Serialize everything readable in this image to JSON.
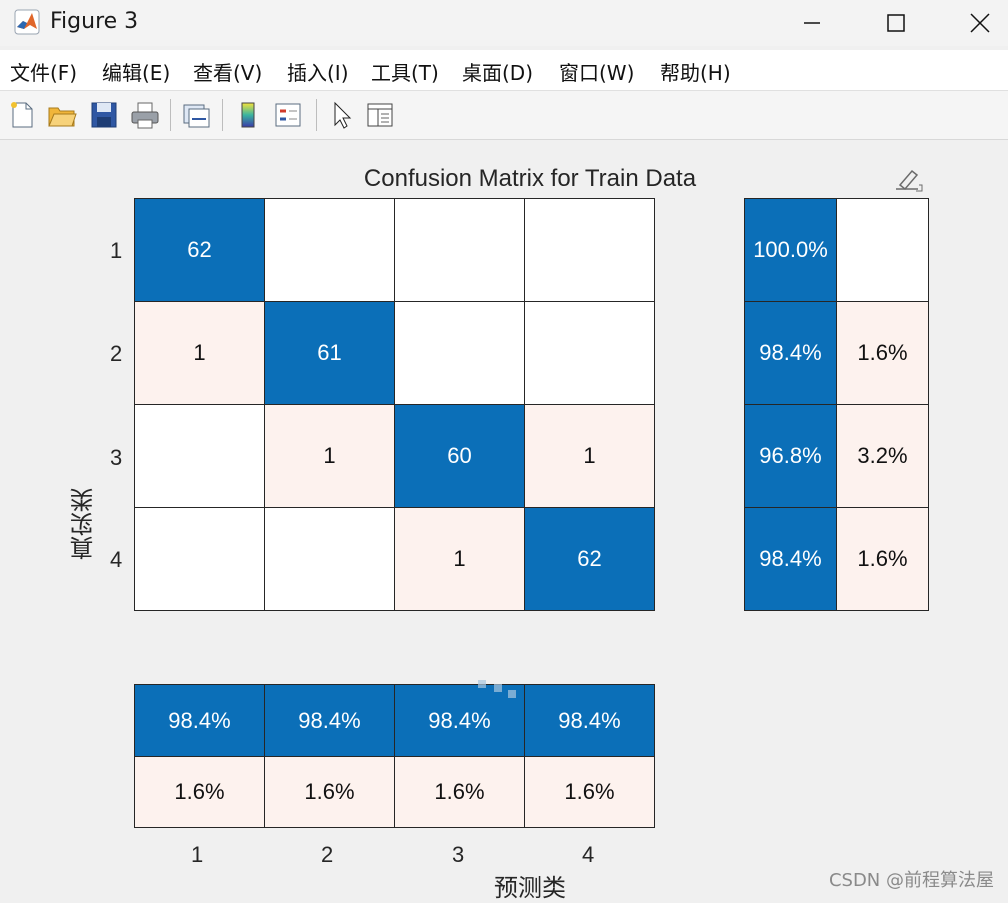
{
  "window": {
    "title": "Figure 3"
  },
  "menu": [
    {
      "label": "文件(F)"
    },
    {
      "label": "编辑(E)"
    },
    {
      "label": "查看(V)"
    },
    {
      "label": "插入(I)"
    },
    {
      "label": "工具(T)"
    },
    {
      "label": "桌面(D)"
    },
    {
      "label": "窗口(W)"
    },
    {
      "label": "帮助(H)"
    }
  ],
  "toolbar": {
    "icons": [
      "new-figure-icon",
      "open-file-icon",
      "save-icon",
      "print-icon",
      "link-plot-icon",
      "colorbar-icon",
      "legend-icon",
      "pointer-icon",
      "property-inspector-icon"
    ]
  },
  "colors": {
    "diag": "#0b6fb8",
    "offdiag": "#fdf2ee",
    "empty": "#ffffff"
  },
  "chart_data": {
    "type": "heatmap",
    "title": "Confusion Matrix for Train Data",
    "xlabel": "预测类",
    "ylabel": "真实类",
    "classes": [
      "1",
      "2",
      "3",
      "4"
    ],
    "matrix": [
      [
        "62",
        "",
        "",
        ""
      ],
      [
        "1",
        "61",
        "",
        ""
      ],
      [
        "",
        "1",
        "60",
        "1"
      ],
      [
        "",
        "",
        "1",
        "62"
      ]
    ],
    "row_summary": [
      [
        "100.0%",
        ""
      ],
      [
        "98.4%",
        "1.6%"
      ],
      [
        "96.8%",
        "3.2%"
      ],
      [
        "98.4%",
        "1.6%"
      ]
    ],
    "column_summary": {
      "correct": [
        "98.4%",
        "98.4%",
        "98.4%",
        "98.4%"
      ],
      "incorrect": [
        "1.6%",
        "1.6%",
        "1.6%",
        "1.6%"
      ]
    }
  },
  "watermark": "CSDN @前程算法屋"
}
